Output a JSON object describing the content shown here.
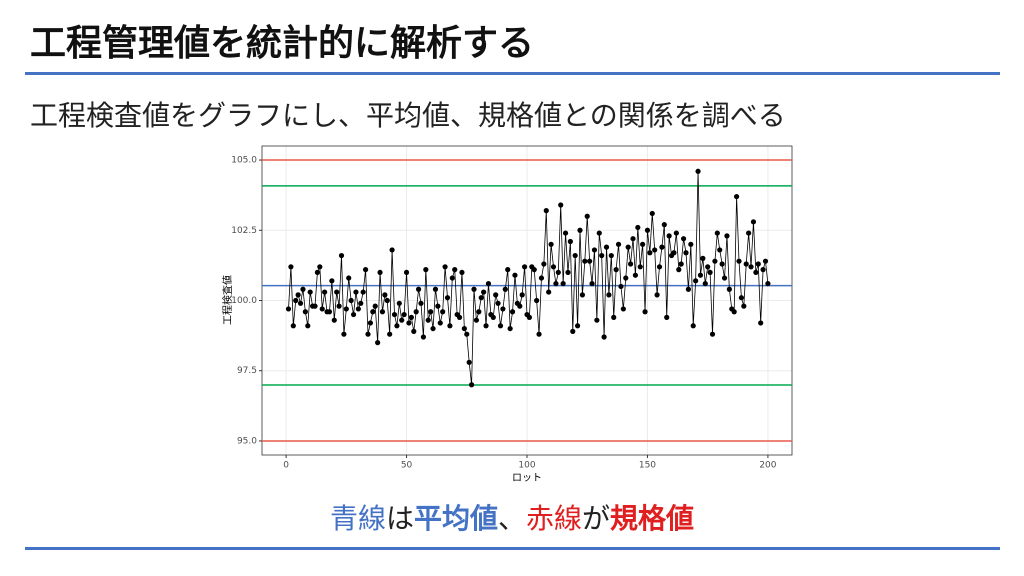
{
  "slide": {
    "title": "工程管理値を統計的に解析する",
    "subtitle": "工程検査値をグラフにし、平均値、規格値との関係を調べる",
    "caption": [
      "青線",
      "は",
      "平均値",
      "、",
      "赤線",
      "が",
      "規格値"
    ]
  },
  "chart_data": {
    "type": "line",
    "xlabel": "ロット",
    "ylabel": "工程検査値",
    "xlim": [
      -10,
      210
    ],
    "ylim": [
      94.5,
      105.5
    ],
    "xticks": [
      0,
      50,
      100,
      150,
      200
    ],
    "yticks": [
      {
        "value": 95,
        "label": "95.0"
      },
      {
        "value": 97.5,
        "label": "97.5"
      },
      {
        "value": 100,
        "label": "100.0"
      },
      {
        "value": 102.5,
        "label": "102.5"
      },
      {
        "value": 105,
        "label": "105.0"
      }
    ],
    "grid": true,
    "color": "#000000",
    "hlines": [
      {
        "value": 105,
        "color": "#e8584a"
      },
      {
        "value": 95,
        "color": "#e8584a"
      },
      {
        "value": 104.08,
        "color": "#00a84f"
      },
      {
        "value": 96.99,
        "color": "#00a84f"
      },
      {
        "value": 100.53,
        "color": "#4472c4"
      }
    ],
    "x": [
      1,
      2,
      3,
      4,
      5,
      6,
      7,
      8,
      9,
      10,
      11,
      12,
      13,
      14,
      15,
      16,
      17,
      18,
      19,
      20,
      21,
      22,
      23,
      24,
      25,
      26,
      27,
      28,
      29,
      30,
      31,
      32,
      33,
      34,
      35,
      36,
      37,
      38,
      39,
      40,
      41,
      42,
      43,
      44,
      45,
      46,
      47,
      48,
      49,
      50,
      51,
      52,
      53,
      54,
      55,
      56,
      57,
      58,
      59,
      60,
      61,
      62,
      63,
      64,
      65,
      66,
      67,
      68,
      69,
      70,
      71,
      72,
      73,
      74,
      75,
      76,
      77,
      78,
      79,
      80,
      81,
      82,
      83,
      84,
      85,
      86,
      87,
      88,
      89,
      90,
      91,
      92,
      93,
      94,
      95,
      96,
      97,
      98,
      99,
      100,
      101,
      102,
      103,
      104,
      105,
      106,
      107,
      108,
      109,
      110,
      111,
      112,
      113,
      114,
      115,
      116,
      117,
      118,
      119,
      120,
      121,
      122,
      123,
      124,
      125,
      126,
      127,
      128,
      129,
      130,
      131,
      132,
      133,
      134,
      135,
      136,
      137,
      138,
      139,
      140,
      141,
      142,
      143,
      144,
      145,
      146,
      147,
      148,
      149,
      150,
      151,
      152,
      153,
      154,
      155,
      156,
      157,
      158,
      159,
      160,
      161,
      162,
      163,
      164,
      165,
      166,
      167,
      168,
      169,
      170,
      171,
      172,
      173,
      174,
      175,
      176,
      177,
      178,
      179,
      180,
      181,
      182,
      183,
      184,
      185,
      186,
      187,
      188,
      189,
      190,
      191,
      192,
      193,
      194,
      195,
      196,
      197,
      198,
      199,
      200
    ],
    "values": [
      99.7,
      101.2,
      99.1,
      100.0,
      100.2,
      99.9,
      100.4,
      99.6,
      99.1,
      100.3,
      99.8,
      99.8,
      101.0,
      101.2,
      99.7,
      100.3,
      99.6,
      99.6,
      100.7,
      99.3,
      100.3,
      99.8,
      101.6,
      98.8,
      99.7,
      100.8,
      100.0,
      99.5,
      100.3,
      99.7,
      99.9,
      100.3,
      101.1,
      98.8,
      99.2,
      99.6,
      99.8,
      98.5,
      101.0,
      99.6,
      100.2,
      100.0,
      98.8,
      101.8,
      99.5,
      99.1,
      99.9,
      99.3,
      99.5,
      101.0,
      99.2,
      99.4,
      98.9,
      99.6,
      100.4,
      99.9,
      98.7,
      101.1,
      99.3,
      99.6,
      99.0,
      100.4,
      99.8,
      99.2,
      99.6,
      101.2,
      100.1,
      99.1,
      100.8,
      101.1,
      99.5,
      99.4,
      101.0,
      99.0,
      98.8,
      97.8,
      97.0,
      100.4,
      99.3,
      99.6,
      100.1,
      100.3,
      99.1,
      100.6,
      99.5,
      99.4,
      100.2,
      99.9,
      99.1,
      99.7,
      100.4,
      101.1,
      99.0,
      99.6,
      100.9,
      99.9,
      99.8,
      100.2,
      101.2,
      99.5,
      99.4,
      101.2,
      101.1,
      100.0,
      98.8,
      100.8,
      101.3,
      103.2,
      100.3,
      102.0,
      101.2,
      100.6,
      101.0,
      103.4,
      100.6,
      102.4,
      101.0,
      102.1,
      98.9,
      101.6,
      99.1,
      102.5,
      100.2,
      101.4,
      103.0,
      101.4,
      100.6,
      101.8,
      99.3,
      102.4,
      101.6,
      98.7,
      101.9,
      100.2,
      101.6,
      99.4,
      101.1,
      102.0,
      100.5,
      99.7,
      100.8,
      101.9,
      101.3,
      102.2,
      100.9,
      102.6,
      101.2,
      102.0,
      99.6,
      102.5,
      101.7,
      103.1,
      101.8,
      100.2,
      101.2,
      101.9,
      102.7,
      99.4,
      102.3,
      101.6,
      101.7,
      102.4,
      101.1,
      101.3,
      102.2,
      101.7,
      100.4,
      102.0,
      99.1,
      100.7,
      104.6,
      100.9,
      101.5,
      100.6,
      101.2,
      101.0,
      98.8,
      101.4,
      102.4,
      101.8,
      101.3,
      100.8,
      102.3,
      100.4,
      99.7,
      99.6,
      103.7,
      101.4,
      100.1,
      99.8,
      101.3,
      102.4,
      101.2,
      102.8,
      101.0,
      101.3,
      99.2,
      101.1,
      101.4,
      100.6
    ]
  }
}
